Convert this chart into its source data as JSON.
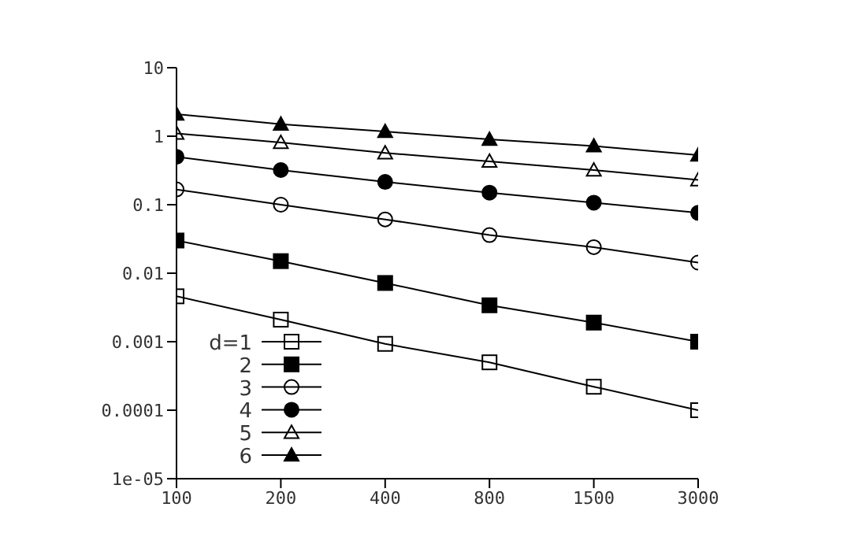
{
  "chart_data": {
    "type": "line",
    "categories": [
      "100",
      "200",
      "400",
      "800",
      "1500",
      "3000"
    ],
    "log": "y",
    "ylim": [
      1e-05,
      10
    ],
    "yticks": [
      {
        "value": 1e-05,
        "label": "1e-05"
      },
      0.0001,
      0.001,
      0.01,
      0.1,
      1,
      10
    ],
    "grid": false,
    "legend": "bottom left",
    "line_style": "solid",
    "series": [
      {
        "name": "d=1",
        "color": "#000000",
        "marker": "square-open",
        "values": [
          0.0046,
          0.0021,
          0.00093,
          0.0005,
          0.00022,
          0.0001
        ]
      },
      {
        "name": "2",
        "color": "#000000",
        "marker": "square",
        "values": [
          0.03,
          0.015,
          0.0072,
          0.0034,
          0.0019,
          0.001
        ]
      },
      {
        "name": "3",
        "color": "#000000",
        "marker": "circle-open",
        "values": [
          0.167,
          0.1,
          0.061,
          0.036,
          0.024,
          0.0143
        ]
      },
      {
        "name": "4",
        "color": "#000000",
        "marker": "circle",
        "values": [
          0.5,
          0.32,
          0.215,
          0.15,
          0.107,
          0.076
        ]
      },
      {
        "name": "5",
        "color": "#000000",
        "marker": "triangle-open",
        "values": [
          1.1,
          0.81,
          0.57,
          0.43,
          0.32,
          0.23
        ]
      },
      {
        "name": "6",
        "color": "#000000",
        "marker": "triangle",
        "values": [
          2.1,
          1.5,
          1.17,
          0.9,
          0.72,
          0.53
        ]
      }
    ]
  }
}
